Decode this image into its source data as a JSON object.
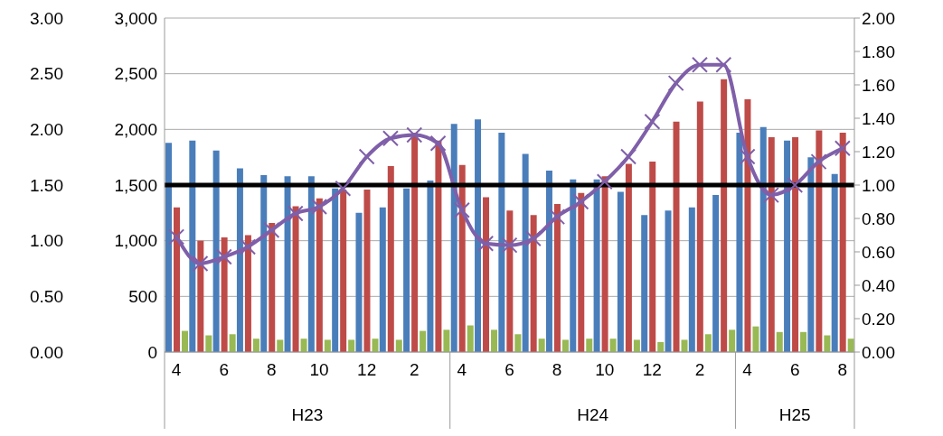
{
  "chart_data": {
    "type": "bar",
    "categories": [
      "4",
      null,
      "6",
      null,
      "8",
      null,
      "10",
      null,
      "12",
      null,
      "2",
      null,
      "4",
      null,
      "6",
      null,
      "8",
      null,
      "10",
      null,
      "12",
      null,
      "2",
      null,
      "4",
      null,
      "6",
      null,
      "8"
    ],
    "series": [
      {
        "color": "#4a7ebb",
        "values": [
          1880,
          1900,
          1810,
          1650,
          1590,
          1580,
          1580,
          1470,
          1250,
          1300,
          1470,
          1540,
          2050,
          2090,
          1970,
          1780,
          1630,
          1550,
          1550,
          1440,
          1230,
          1270,
          1300,
          1410,
          1970,
          2020,
          1900,
          1750,
          1600
        ]
      },
      {
        "color": "#be4b48",
        "values": [
          1300,
          1000,
          1030,
          1050,
          1160,
          1310,
          1380,
          1460,
          1460,
          1670,
          1970,
          1900,
          1680,
          1390,
          1270,
          1230,
          1330,
          1430,
          1580,
          1690,
          1710,
          2070,
          2250,
          2450,
          2270,
          1930,
          1930,
          1990,
          1970
        ]
      },
      {
        "color": "#98b954",
        "values": [
          190,
          150,
          160,
          120,
          110,
          120,
          110,
          110,
          120,
          110,
          190,
          200,
          240,
          200,
          160,
          120,
          110,
          120,
          120,
          110,
          90,
          110,
          160,
          200,
          230,
          180,
          180,
          150,
          120
        ]
      },
      {
        "type": "line",
        "axis": "y2",
        "color": "#7f5fa9",
        "values": [
          0.69,
          0.53,
          0.57,
          0.63,
          0.73,
          0.83,
          0.87,
          0.98,
          1.17,
          1.28,
          1.3,
          1.25,
          0.85,
          0.65,
          0.64,
          0.68,
          0.81,
          0.9,
          1.02,
          1.17,
          1.38,
          1.61,
          1.72,
          1.72,
          1.17,
          0.94,
          1.0,
          1.14,
          1.22
        ]
      }
    ],
    "ylim": [
      0,
      3000
    ],
    "yticks": [
      0,
      500,
      {
        "value": 1000,
        "label": "1,000"
      },
      {
        "value": 1500,
        "label": "1,500"
      },
      {
        "value": 2000,
        "label": "2,000"
      },
      {
        "value": 2500,
        "label": "2,500"
      },
      {
        "value": 3000,
        "label": "3,000"
      }
    ],
    "y2lim": [
      0,
      2
    ],
    "y2ticks": [
      {
        "value": 0,
        "label": "0.00"
      },
      {
        "value": 0.2,
        "label": "0.20"
      },
      {
        "value": 0.4,
        "label": "0.40"
      },
      {
        "value": 0.6,
        "label": "0.60"
      },
      {
        "value": 0.8,
        "label": "0.80"
      },
      {
        "value": 1,
        "label": "1.00"
      },
      {
        "value": 1.2,
        "label": "1.20"
      },
      {
        "value": 1.4,
        "label": "1.40"
      },
      {
        "value": 1.6,
        "label": "1.60"
      },
      {
        "value": 1.8,
        "label": "1.80"
      },
      {
        "value": 2,
        "label": "2.00"
      }
    ],
    "y3lim": [
      0,
      3
    ],
    "y3ticks": [
      {
        "value": 0,
        "label": "0.00"
      },
      {
        "value": 0.5,
        "label": "0.50"
      },
      {
        "value": 1,
        "label": "1.00"
      },
      {
        "value": 1.5,
        "label": "1.50"
      },
      {
        "value": 2,
        "label": "2.00"
      },
      {
        "value": 2.5,
        "label": "2.50"
      },
      {
        "value": 3,
        "label": "3.00"
      }
    ],
    "ref_lines": [
      {
        "axis": "y",
        "value": 1500,
        "color": "#000000"
      }
    ],
    "annotations": [
      "H23",
      "H24",
      "H25"
    ],
    "grid": "y",
    "marker": "cross"
  }
}
